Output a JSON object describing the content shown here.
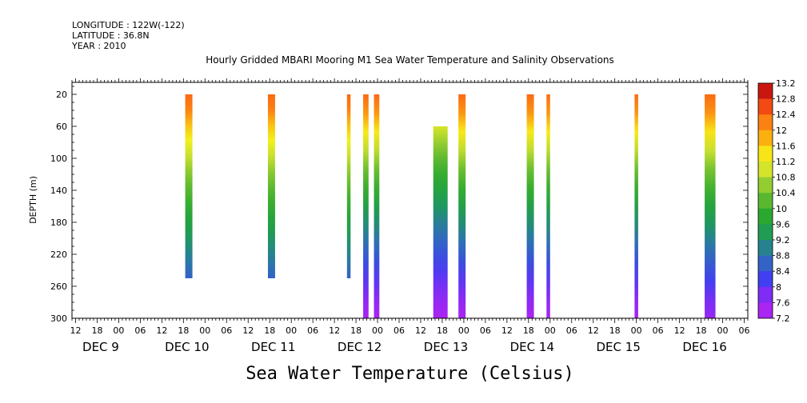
{
  "header": {
    "longitude": "LONGITUDE : 122W(-122)",
    "latitude": "LATITUDE : 36.8N",
    "year": "YEAR : 2010"
  },
  "chart_data": {
    "type": "heatmap",
    "title": "Hourly Gridded MBARI Mooring M1 Sea Water Temperature and Salinity Observations",
    "xlabel": "Sea Water Temperature (Celsius)",
    "ylabel": "DEPTH (m)",
    "x_unit": "hours since DEC 9 00:00",
    "xlim": [
      -7,
      181
    ],
    "ylim": [
      300,
      5
    ],
    "y_ticks": [
      20,
      60,
      100,
      140,
      180,
      220,
      260,
      300
    ],
    "hour_tick_labels": [
      "12",
      "18",
      "00",
      "06",
      "12",
      "18",
      "00",
      "06",
      "12",
      "18",
      "00",
      "06",
      "12",
      "18",
      "00",
      "06",
      "12",
      "18",
      "00",
      "06",
      "12",
      "18",
      "00",
      "06",
      "12",
      "18",
      "00",
      "06",
      "12",
      "18",
      "00",
      "06"
    ],
    "day_labels": [
      "DEC  9",
      "DEC 10",
      "DEC 11",
      "DEC 12",
      "DEC 13",
      "DEC 14",
      "DEC 15",
      "DEC 16"
    ],
    "colorbar": {
      "min": 7.2,
      "max": 13.2,
      "step": 0.4,
      "tick_labels": [
        "13.2",
        "12.8",
        "12.4",
        "12",
        "11.6",
        "11.2",
        "10.8",
        "10.4",
        "10",
        "9.6",
        "9.2",
        "8.8",
        "8.4",
        "8",
        "7.6",
        "7.2"
      ]
    },
    "profiles": [
      {
        "x_start": 24.5,
        "x_end": 26.5,
        "depth_top": 20,
        "depth_bottom": 250,
        "surface_temp": 12.4,
        "bottom_temp": 8.0
      },
      {
        "x_start": 47.5,
        "x_end": 49.5,
        "depth_top": 20,
        "depth_bottom": 250,
        "surface_temp": 12.4,
        "bottom_temp": 8.0
      },
      {
        "x_start": 69.5,
        "x_end": 70.5,
        "depth_top": 20,
        "depth_bottom": 250,
        "surface_temp": 12.4,
        "bottom_temp": 8.0
      },
      {
        "x_start": 74.0,
        "x_end": 75.5,
        "depth_top": 20,
        "depth_bottom": 300,
        "surface_temp": 12.4,
        "bottom_temp": 7.4
      },
      {
        "x_start": 77.0,
        "x_end": 78.5,
        "depth_top": 20,
        "depth_bottom": 300,
        "surface_temp": 12.4,
        "bottom_temp": 7.4
      },
      {
        "x_start": 93.5,
        "x_end": 97.5,
        "depth_top": 60,
        "depth_bottom": 300,
        "surface_temp": 11.8,
        "bottom_temp": 7.4
      },
      {
        "x_start": 100.5,
        "x_end": 102.5,
        "depth_top": 20,
        "depth_bottom": 300,
        "surface_temp": 12.4,
        "bottom_temp": 7.4
      },
      {
        "x_start": 119.5,
        "x_end": 121.5,
        "depth_top": 20,
        "depth_bottom": 300,
        "surface_temp": 12.4,
        "bottom_temp": 7.4
      },
      {
        "x_start": 125.0,
        "x_end": 126.0,
        "depth_top": 20,
        "depth_bottom": 300,
        "surface_temp": 12.4,
        "bottom_temp": 7.4
      },
      {
        "x_start": 149.5,
        "x_end": 150.5,
        "depth_top": 20,
        "depth_bottom": 300,
        "surface_temp": 12.4,
        "bottom_temp": 7.4
      },
      {
        "x_start": 169.0,
        "x_end": 172.0,
        "depth_top": 20,
        "depth_bottom": 300,
        "surface_temp": 12.4,
        "bottom_temp": 7.6
      }
    ]
  }
}
